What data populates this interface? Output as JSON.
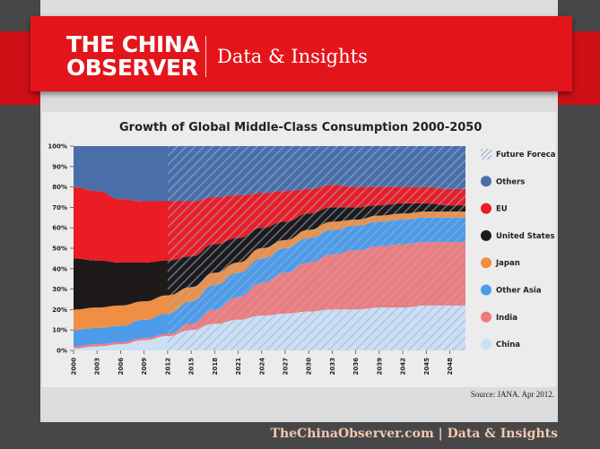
{
  "banner": {
    "logo_line1": "THE CHINA",
    "logo_line2": "OBSERVER",
    "subtitle": "Data & Insights"
  },
  "source": "Source: JANA.  Apr 2012.",
  "footer": "TheChinaObserver.com | Data & Insights",
  "colors": {
    "others": "#4a6fa8",
    "eu": "#ea1c24",
    "us": "#1e1a1a",
    "japan": "#ef8f43",
    "other_asia": "#4d9be9",
    "india": "#f27a7a",
    "china": "#cddff4",
    "forecast_hatch": "#9bb6d8"
  },
  "chart_data": {
    "type": "area",
    "title": "Growth of Global Middle-Class Consumption 2000-2050",
    "stacked": true,
    "percent": true,
    "x_ticks": [
      "2000",
      "2003",
      "2006",
      "2009",
      "2012",
      "2015",
      "2018",
      "2021",
      "2024",
      "2027",
      "2030",
      "2033",
      "2036",
      "2039",
      "2042",
      "2045",
      "2048"
    ],
    "y_ticks": [
      "0%",
      "10%",
      "20%",
      "30%",
      "40%",
      "50%",
      "60%",
      "70%",
      "80%",
      "90%",
      "100%"
    ],
    "ylim": [
      0,
      100
    ],
    "forecast_from": 2012,
    "x": [
      2000,
      2003,
      2006,
      2009,
      2012,
      2015,
      2018,
      2021,
      2024,
      2027,
      2030,
      2033,
      2036,
      2039,
      2042,
      2045,
      2048,
      2050
    ],
    "series": [
      {
        "name": "China",
        "key": "china",
        "values": [
          1,
          2,
          3,
          5,
          7,
          10,
          13,
          15,
          17,
          18,
          19,
          20,
          20,
          21,
          21,
          22,
          22,
          22
        ]
      },
      {
        "name": "India",
        "key": "india",
        "values": [
          1,
          1,
          1,
          1,
          1,
          3,
          7,
          11,
          16,
          20,
          24,
          27,
          29,
          30,
          31,
          31,
          31,
          31
        ]
      },
      {
        "name": "Other Asia",
        "key": "other_asia",
        "values": [
          8,
          8,
          8,
          9,
          10,
          11,
          12,
          12,
          12,
          12,
          12,
          12,
          12,
          12,
          12,
          12,
          12,
          12
        ]
      },
      {
        "name": "Japan",
        "key": "japan",
        "values": [
          10,
          10,
          10,
          9,
          9,
          7,
          6,
          5,
          5,
          4,
          4,
          4,
          3,
          3,
          3,
          3,
          3,
          3
        ]
      },
      {
        "name": "United States",
        "key": "us",
        "values": [
          25,
          23,
          21,
          19,
          17,
          15,
          14,
          12,
          10,
          9,
          8,
          7,
          6,
          5,
          5,
          4,
          3,
          3
        ]
      },
      {
        "name": "EU",
        "key": "eu",
        "values": [
          35,
          34,
          31,
          30,
          29,
          27,
          23,
          21,
          17,
          15,
          12,
          11,
          10,
          9,
          8,
          8,
          8,
          8
        ]
      },
      {
        "name": "Others",
        "key": "others",
        "values": [
          20,
          22,
          26,
          27,
          27,
          27,
          25,
          24,
          23,
          22,
          21,
          19,
          20,
          20,
          20,
          20,
          21,
          21
        ]
      }
    ],
    "legend": {
      "placement": "right",
      "items": [
        {
          "label": "Future Forecast",
          "key": "forecast"
        },
        {
          "label": "Others",
          "key": "others"
        },
        {
          "label": "EU",
          "key": "eu"
        },
        {
          "label": "United States",
          "key": "us"
        },
        {
          "label": "Japan",
          "key": "japan"
        },
        {
          "label": "Other Asia",
          "key": "other_asia"
        },
        {
          "label": "India",
          "key": "india"
        },
        {
          "label": "China",
          "key": "china"
        }
      ]
    }
  }
}
